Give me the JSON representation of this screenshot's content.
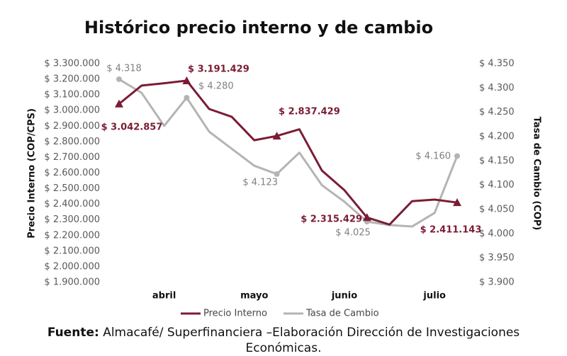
{
  "chart_data": {
    "type": "line",
    "title": "Histórico precio interno y de cambio",
    "categories": [
      null,
      null,
      "abril",
      null,
      null,
      null,
      "mayo",
      null,
      null,
      null,
      "junio",
      null,
      null,
      null,
      "julio",
      null
    ],
    "series": [
      {
        "name": "Precio Interno",
        "color": "#7b1c34",
        "values": [
          3042857,
          3160000,
          3175000,
          3191429,
          3010000,
          2960000,
          2810000,
          2837429,
          2880000,
          2616000,
          2490000,
          2315429,
          2270000,
          2420000,
          2430000,
          2411143
        ],
        "value_labels": [
          "$ 3.042.857",
          null,
          null,
          "$ 3.191.429",
          null,
          null,
          null,
          "$ 2.837.429",
          null,
          null,
          null,
          "$ 2.315.429",
          null,
          null,
          null,
          "$ 2.411.143"
        ]
      },
      {
        "name": "Tasa de Cambio",
        "color": "#b4b4b4",
        "axis": "y2",
        "values": [
          4.318,
          4.29,
          4.222,
          4.28,
          4.21,
          4.175,
          4.14,
          4.123,
          4.167,
          4.1,
          4.066,
          4.025,
          4.018,
          4.015,
          4.043,
          4.16
        ],
        "value_labels": [
          "$ 4.318",
          null,
          null,
          "$ 4.280",
          null,
          null,
          null,
          "$ 4.123",
          null,
          null,
          null,
          "$ 4.025",
          null,
          null,
          null,
          "$ 4.160"
        ]
      }
    ],
    "ylabel": "Precio Interno (COP/CPS)",
    "y2label": "Tasa de Cambio (COP)",
    "ylim": [
      1900000,
      3300000
    ],
    "yticks": [
      {
        "value": 1900000,
        "label": "$ 1.900.000"
      },
      {
        "value": 2000000,
        "label": "$ 2.000.000"
      },
      {
        "value": 2100000,
        "label": "$ 2.100.000"
      },
      {
        "value": 2200000,
        "label": "$ 2.200.000"
      },
      {
        "value": 2300000,
        "label": "$ 2.300.000"
      },
      {
        "value": 2400000,
        "label": "$ 2.400.000"
      },
      {
        "value": 2500000,
        "label": "$ 2.500.000"
      },
      {
        "value": 2600000,
        "label": "$ 2.600.000"
      },
      {
        "value": 2700000,
        "label": "$ 2.700.000"
      },
      {
        "value": 2800000,
        "label": "$ 2.800.000"
      },
      {
        "value": 2900000,
        "label": "$ 2.900.000"
      },
      {
        "value": 3000000,
        "label": "$ 3.000.000"
      },
      {
        "value": 3100000,
        "label": "$ 3.100.000"
      },
      {
        "value": 3200000,
        "label": "$ 3.200.000"
      },
      {
        "value": 3300000,
        "label": "$ 3.300.000"
      }
    ],
    "y2lim": [
      3.9,
      4.35
    ],
    "y2ticks": [
      {
        "value": 3.9,
        "label": "$ 3.900"
      },
      {
        "value": 3.95,
        "label": "$ 3.950"
      },
      {
        "value": 4.0,
        "label": "$ 4.000"
      },
      {
        "value": 4.05,
        "label": "$ 4.050"
      },
      {
        "value": 4.1,
        "label": "$ 4.100"
      },
      {
        "value": 4.15,
        "label": "$ 4.150"
      },
      {
        "value": 4.2,
        "label": "$ 4.200"
      },
      {
        "value": 4.25,
        "label": "$ 4.250"
      },
      {
        "value": 4.3,
        "label": "$ 4.300"
      },
      {
        "value": 4.35,
        "label": "$ 4.350"
      }
    ],
    "legend": "bottom",
    "footer": {
      "label": "Fuente:",
      "text": "Almacafé/ Superfinanciera –Elaboración Dirección de Investigaciones Económicas."
    }
  }
}
